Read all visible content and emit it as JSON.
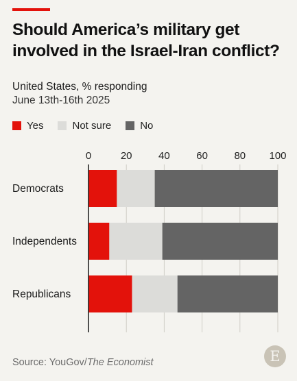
{
  "title": "Should America’s military get involved in the Israel-Iran conflict?",
  "subtitle": "United States, % responding",
  "date_range": "June 13th-16th 2025",
  "source_prefix": "Source: YouGov/",
  "source_publication": "The Economist",
  "logo_letter": "E",
  "colors": {
    "accent": "#e3120b",
    "yes": "#e3120b",
    "not_sure": "#dcdcd9",
    "no": "#646464",
    "background": "#f4f3ef"
  },
  "chart_data": {
    "type": "bar",
    "orientation": "horizontal",
    "stacked": true,
    "categories": [
      "Democrats",
      "Independents",
      "Republicans"
    ],
    "series": [
      {
        "name": "Yes",
        "values": [
          15,
          11,
          23
        ]
      },
      {
        "name": "Not sure",
        "values": [
          20,
          28,
          24
        ]
      },
      {
        "name": "No",
        "values": [
          65,
          61,
          53
        ]
      }
    ],
    "xticks": [
      0,
      20,
      40,
      60,
      80,
      100
    ],
    "xlim": [
      0,
      100
    ],
    "legend": "top",
    "grid": true
  }
}
